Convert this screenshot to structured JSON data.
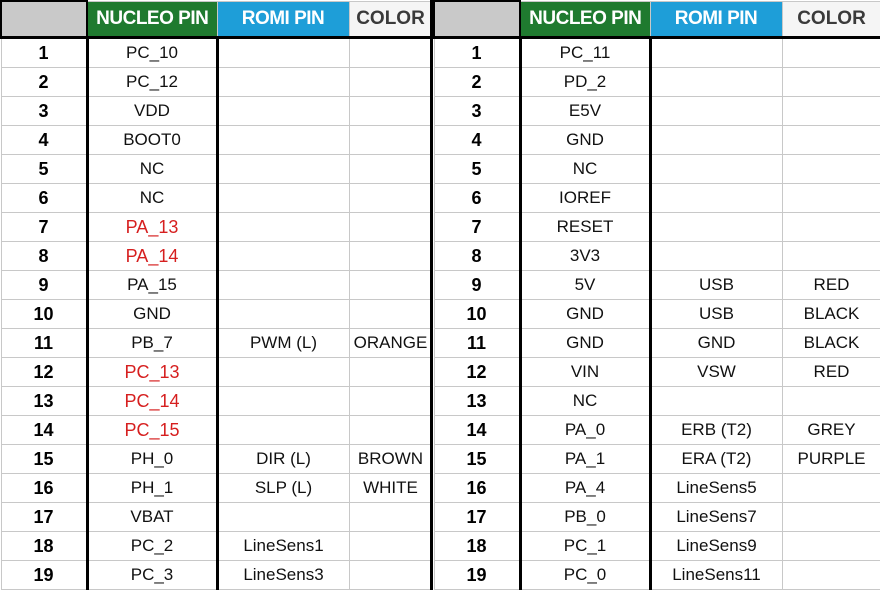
{
  "headers": {
    "nucleo_pin": "NUCLEO PIN",
    "romi_pin": "ROMI PIN",
    "color": "COLOR"
  },
  "colors": {
    "nucleo_header_bg": "#1f7a2f",
    "romi_header_bg": "#1e9ed8",
    "highlight_text": "#d61f1f"
  },
  "left_table": {
    "rows": [
      {
        "num": "1",
        "nucleo": "PC_10",
        "romi": "",
        "color": "",
        "highlight": false
      },
      {
        "num": "2",
        "nucleo": "PC_12",
        "romi": "",
        "color": "",
        "highlight": false
      },
      {
        "num": "3",
        "nucleo": "VDD",
        "romi": "",
        "color": "",
        "highlight": false
      },
      {
        "num": "4",
        "nucleo": "BOOT0",
        "romi": "",
        "color": "",
        "highlight": false
      },
      {
        "num": "5",
        "nucleo": "NC",
        "romi": "",
        "color": "",
        "highlight": false
      },
      {
        "num": "6",
        "nucleo": "NC",
        "romi": "",
        "color": "",
        "highlight": false
      },
      {
        "num": "7",
        "nucleo": "PA_13",
        "romi": "",
        "color": "",
        "highlight": true
      },
      {
        "num": "8",
        "nucleo": "PA_14",
        "romi": "",
        "color": "",
        "highlight": true
      },
      {
        "num": "9",
        "nucleo": "PA_15",
        "romi": "",
        "color": "",
        "highlight": false
      },
      {
        "num": "10",
        "nucleo": "GND",
        "romi": "",
        "color": "",
        "highlight": false
      },
      {
        "num": "11",
        "nucleo": "PB_7",
        "romi": "PWM (L)",
        "color": "ORANGE",
        "highlight": false
      },
      {
        "num": "12",
        "nucleo": "PC_13",
        "romi": "",
        "color": "",
        "highlight": true
      },
      {
        "num": "13",
        "nucleo": "PC_14",
        "romi": "",
        "color": "",
        "highlight": true
      },
      {
        "num": "14",
        "nucleo": "PC_15",
        "romi": "",
        "color": "",
        "highlight": true
      },
      {
        "num": "15",
        "nucleo": "PH_0",
        "romi": "DIR (L)",
        "color": "BROWN",
        "highlight": false
      },
      {
        "num": "16",
        "nucleo": "PH_1",
        "romi": "SLP (L)",
        "color": "WHITE",
        "highlight": false
      },
      {
        "num": "17",
        "nucleo": "VBAT",
        "romi": "",
        "color": "",
        "highlight": false
      },
      {
        "num": "18",
        "nucleo": "PC_2",
        "romi": "LineSens1",
        "color": "",
        "highlight": false
      },
      {
        "num": "19",
        "nucleo": "PC_3",
        "romi": "LineSens3",
        "color": "",
        "highlight": false
      }
    ]
  },
  "right_table": {
    "rows": [
      {
        "num": "1",
        "nucleo": "PC_11",
        "romi": "",
        "color": "",
        "highlight": false
      },
      {
        "num": "2",
        "nucleo": "PD_2",
        "romi": "",
        "color": "",
        "highlight": false
      },
      {
        "num": "3",
        "nucleo": "E5V",
        "romi": "",
        "color": "",
        "highlight": false
      },
      {
        "num": "4",
        "nucleo": "GND",
        "romi": "",
        "color": "",
        "highlight": false
      },
      {
        "num": "5",
        "nucleo": "NC",
        "romi": "",
        "color": "",
        "highlight": false
      },
      {
        "num": "6",
        "nucleo": "IOREF",
        "romi": "",
        "color": "",
        "highlight": false
      },
      {
        "num": "7",
        "nucleo": "RESET",
        "romi": "",
        "color": "",
        "highlight": false
      },
      {
        "num": "8",
        "nucleo": "3V3",
        "romi": "",
        "color": "",
        "highlight": false
      },
      {
        "num": "9",
        "nucleo": "5V",
        "romi": "USB",
        "color": "RED",
        "highlight": false
      },
      {
        "num": "10",
        "nucleo": "GND",
        "romi": "USB",
        "color": "BLACK",
        "highlight": false
      },
      {
        "num": "11",
        "nucleo": "GND",
        "romi": "GND",
        "color": "BLACK",
        "highlight": false
      },
      {
        "num": "12",
        "nucleo": "VIN",
        "romi": "VSW",
        "color": "RED",
        "highlight": false
      },
      {
        "num": "13",
        "nucleo": "NC",
        "romi": "",
        "color": "",
        "highlight": false
      },
      {
        "num": "14",
        "nucleo": "PA_0",
        "romi": "ERB (T2)",
        "color": "GREY",
        "highlight": false
      },
      {
        "num": "15",
        "nucleo": "PA_1",
        "romi": "ERA (T2)",
        "color": "PURPLE",
        "highlight": false
      },
      {
        "num": "16",
        "nucleo": "PA_4",
        "romi": "LineSens5",
        "color": "",
        "highlight": false
      },
      {
        "num": "17",
        "nucleo": "PB_0",
        "romi": "LineSens7",
        "color": "",
        "highlight": false
      },
      {
        "num": "18",
        "nucleo": "PC_1",
        "romi": "LineSens9",
        "color": "",
        "highlight": false
      },
      {
        "num": "19",
        "nucleo": "PC_0",
        "romi": "LineSens11",
        "color": "",
        "highlight": false
      }
    ]
  }
}
